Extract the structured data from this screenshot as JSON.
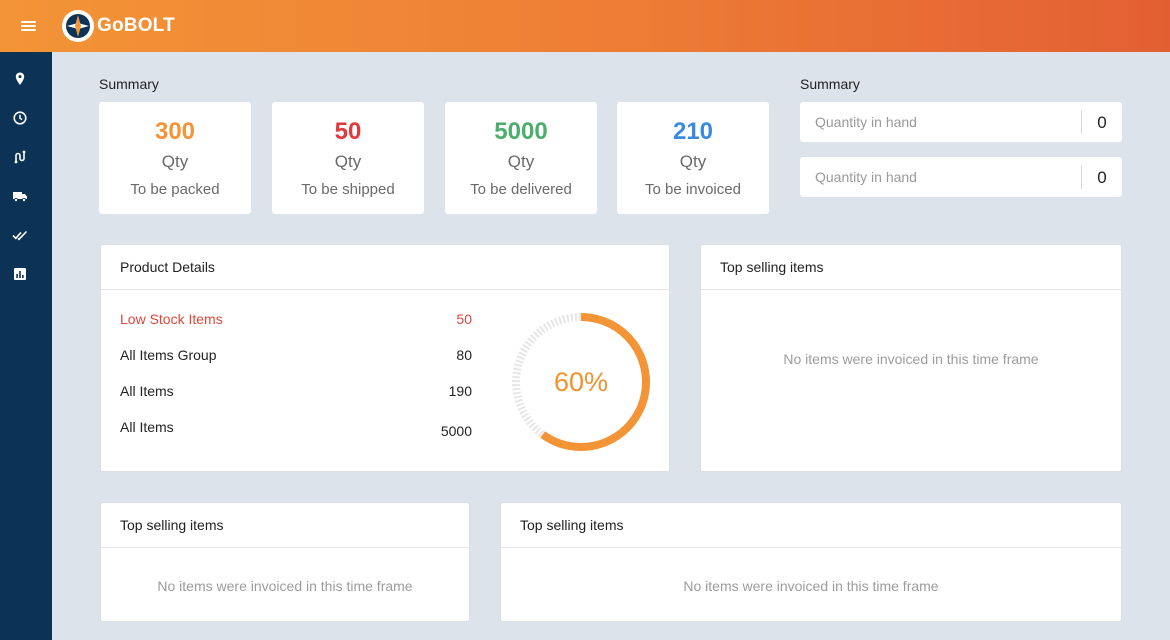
{
  "app": {
    "brand": "GoBOLT"
  },
  "topbar": {
    "menu_icon": "hamburger-menu-icon"
  },
  "sidebar": {
    "items": [
      {
        "icon": "location-pin-icon"
      },
      {
        "icon": "clock-icon"
      },
      {
        "icon": "route-icon"
      },
      {
        "icon": "truck-icon"
      },
      {
        "icon": "double-check-icon"
      },
      {
        "icon": "report-chart-icon"
      }
    ]
  },
  "summary_left": {
    "title": "Summary",
    "cards": [
      {
        "value": "300",
        "unit": "Qty",
        "label": "To be packed",
        "color": "#f39436"
      },
      {
        "value": "50",
        "unit": "Qty",
        "label": "To be shipped",
        "color": "#e03a3e"
      },
      {
        "value": "5000",
        "unit": "Qty",
        "label": "To be delivered",
        "color": "#4cae6b"
      },
      {
        "value": "210",
        "unit": "Qty",
        "label": "To be invoiced",
        "color": "#3a8be0"
      }
    ]
  },
  "summary_right": {
    "title": "Summary",
    "fields": [
      {
        "label": "Quantity in hand",
        "value": "0"
      },
      {
        "label": "Quantity in hand",
        "value": "0"
      }
    ]
  },
  "product_details": {
    "title": "Product Details",
    "rows": [
      {
        "label": "Low Stock Items",
        "value": "50",
        "highlight": "#e0463a"
      },
      {
        "label": "All Items Group",
        "value": "80"
      },
      {
        "label": "All Items",
        "value": "190"
      },
      {
        "label": "All Items",
        "value": "5000"
      }
    ],
    "progress": {
      "label": "60%",
      "fraction": 0.6,
      "color": "#f39436",
      "track": "#e6e6e6"
    }
  },
  "top_selling_1": {
    "title": "Top selling items",
    "empty": "No items were invoiced in this time frame"
  },
  "top_selling_2": {
    "title": "Top selling items",
    "empty": "No items were invoiced in this time frame"
  },
  "top_selling_3": {
    "title": "Top selling items",
    "empty": "No items were invoiced in this time frame"
  }
}
